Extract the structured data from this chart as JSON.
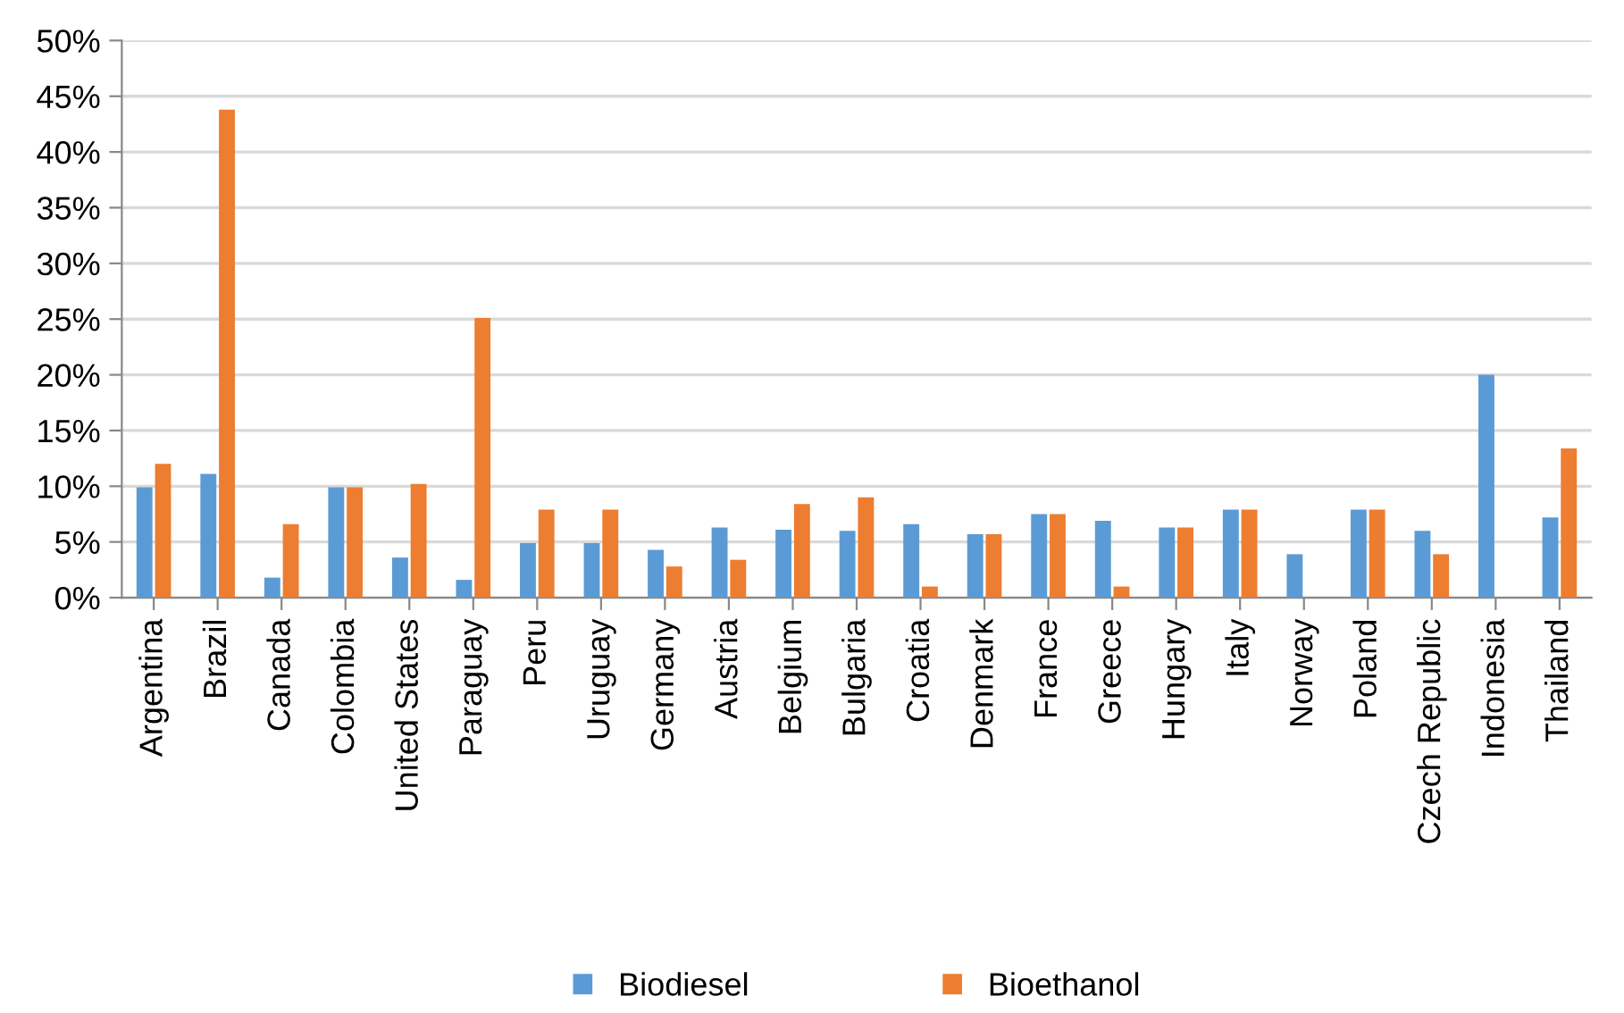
{
  "chart_data": {
    "type": "bar",
    "categories": [
      "Argentina",
      "Brazil",
      "Canada",
      "Colombia",
      "United States",
      "Paraguay",
      "Peru",
      "Uruguay",
      "Germany",
      "Austria",
      "Belgium",
      "Bulgaria",
      "Croatia",
      "Denmark",
      "France",
      "Greece",
      "Hungary",
      "Italy",
      "Norway",
      "Poland",
      "Czech Republic",
      "Indonesia",
      "Thailand"
    ],
    "series": [
      {
        "name": "Biodiesel",
        "color": "#5b9bd5",
        "values": [
          9.9,
          11.1,
          1.8,
          9.9,
          3.6,
          1.6,
          4.9,
          4.9,
          4.3,
          6.3,
          6.1,
          6.0,
          6.6,
          5.7,
          7.5,
          6.9,
          6.3,
          7.9,
          3.9,
          7.9,
          6.0,
          20.0,
          7.2
        ]
      },
      {
        "name": "Bioethanol",
        "color": "#ed7d31",
        "values": [
          12.0,
          43.8,
          6.6,
          9.9,
          10.2,
          25.1,
          7.9,
          7.9,
          2.8,
          3.4,
          8.4,
          9.0,
          1.0,
          5.7,
          7.5,
          1.0,
          6.3,
          7.9,
          null,
          7.9,
          3.9,
          null,
          13.4
        ]
      }
    ],
    "ylim": [
      0,
      50
    ],
    "yticks": [
      {
        "value": 0,
        "label": "0%"
      },
      {
        "value": 5,
        "label": "5%"
      },
      {
        "value": 10,
        "label": "10%"
      },
      {
        "value": 15,
        "label": "15%"
      },
      {
        "value": 20,
        "label": "20%"
      },
      {
        "value": 25,
        "label": "25%"
      },
      {
        "value": 30,
        "label": "30%"
      },
      {
        "value": 35,
        "label": "35%"
      },
      {
        "value": 40,
        "label": "40%"
      },
      {
        "value": 45,
        "label": "45%"
      },
      {
        "value": 50,
        "label": "50%"
      }
    ],
    "grid": "y",
    "legend": "bottom"
  }
}
